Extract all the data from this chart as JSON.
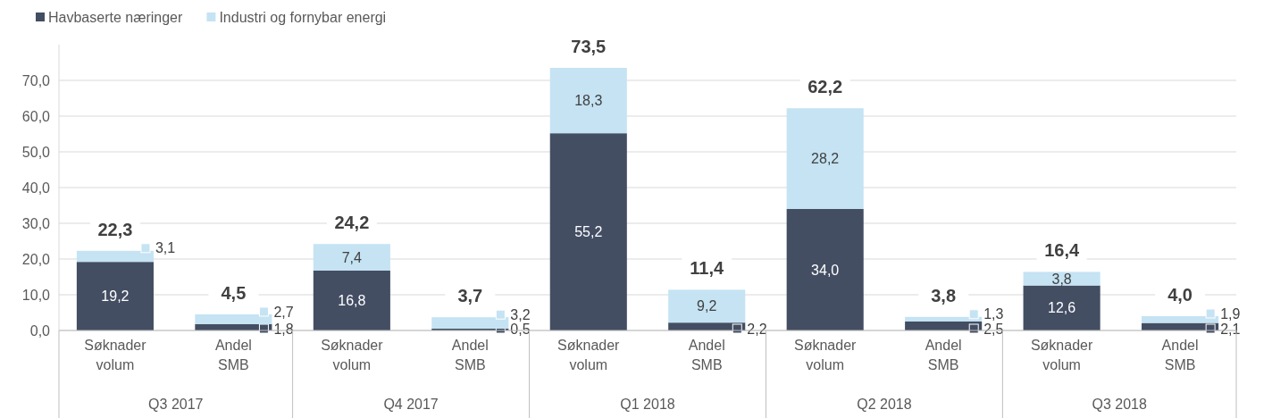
{
  "chart_data": {
    "type": "bar",
    "stacked": true,
    "categories": [
      "Søknader volum",
      "Andel SMB",
      "Søknader volum",
      "Andel SMB",
      "Søknader volum",
      "Andel SMB",
      "Søknader volum",
      "Andel SMB",
      "Søknader volum",
      "Andel SMB"
    ],
    "series": [
      {
        "name": "Havbaserte næringer",
        "color": "#434e63",
        "values": [
          19.2,
          1.8,
          16.8,
          0.5,
          55.2,
          2.2,
          34.0,
          2.5,
          12.6,
          2.1
        ],
        "value_labels": [
          "19,2",
          "1,8",
          "16,8",
          "0,5",
          "55,2",
          "2,2",
          "34,0",
          "2,5",
          "12,6",
          "2,1"
        ]
      },
      {
        "name": "Industri og fornybar energi",
        "color": "#c5e3f3",
        "values": [
          3.1,
          2.7,
          7.4,
          3.2,
          18.3,
          9.2,
          28.2,
          1.3,
          3.8,
          1.9
        ],
        "value_labels": [
          "3,1",
          "2,7",
          "7,4",
          "3,2",
          "18,3",
          "9,2",
          "28,2",
          "1,3",
          "3,8",
          "1,9"
        ]
      }
    ],
    "totals": [
      "22,3",
      "4,5",
      "24,2",
      "3,7",
      "73,5",
      "11,4",
      "62,2",
      "3,8",
      "16,4",
      "4,0"
    ],
    "annotations": [
      "Q3 2017",
      "Q4 2017",
      "Q1 2018",
      "Q2 2018",
      "Q3 2018"
    ],
    "ylim": [
      0,
      80
    ],
    "yticks": [
      {
        "value": 0,
        "label": "0,0"
      },
      {
        "value": 10,
        "label": "10,0"
      },
      {
        "value": 20,
        "label": "20,0"
      },
      {
        "value": 30,
        "label": "30,0"
      },
      {
        "value": 40,
        "label": "40,0"
      },
      {
        "value": 50,
        "label": "50,0"
      },
      {
        "value": 60,
        "label": "60,0"
      },
      {
        "value": 70,
        "label": "70,0"
      }
    ],
    "grid": "y",
    "legend": "top left"
  }
}
